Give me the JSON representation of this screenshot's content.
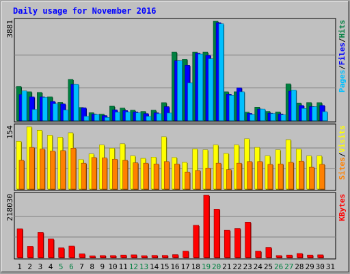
{
  "chart_data": {
    "type": "bar",
    "title": "Daily usage for November 2016",
    "days": [
      "1",
      "2",
      "3",
      "4",
      "5",
      "6",
      "7",
      "8",
      "9",
      "10",
      "11",
      "12",
      "13",
      "14",
      "15",
      "16",
      "17",
      "18",
      "19",
      "20",
      "21",
      "22",
      "23",
      "24",
      "25",
      "26",
      "27",
      "28",
      "29",
      "30",
      "31"
    ],
    "weekend_days": [
      "5",
      "6",
      "12",
      "13",
      "19",
      "20",
      "26",
      "27"
    ],
    "panels": [
      {
        "id": "hits",
        "ymax_label": "3881",
        "ymax": 3881,
        "legend": [
          "Pages",
          "/",
          "Files",
          "/",
          "Hits"
        ],
        "series": [
          {
            "name": "Hits",
            "values": [
              1331,
              1126,
              1101,
              929,
              710,
              1609,
              512,
              307,
              251,
              563,
              487,
              404,
              358,
              404,
              700,
              2675,
              2399,
              2675,
              2675,
              3881,
              1126,
              1126,
              329,
              527,
              358,
              337,
              1433,
              688,
              703,
              700,
              0
            ]
          },
          {
            "name": "Files",
            "values": [
              1019,
              926,
              926,
              748,
              649,
              1413,
              498,
              252,
              198,
              418,
              392,
              337,
              275,
              304,
              546,
              2339,
              2159,
              2634,
              2552,
              3826,
              1035,
              1280,
              282,
              451,
              290,
              256,
              1150,
              590,
              548,
              590,
              0
            ]
          },
          {
            "name": "Pages",
            "values": [
              1159,
              434,
              904,
              655,
              411,
              1413,
              167,
              236,
              123,
              327,
              334,
              305,
              167,
              270,
              296,
              2339,
              1474,
              2596,
              2419,
              3783,
              984,
              1126,
              236,
              451,
              276,
              224,
              1193,
              473,
              546,
              348,
              0
            ]
          }
        ]
      },
      {
        "id": "visits",
        "ymax_label": "154",
        "ymax": 154,
        "legend": [
          "Sites",
          "/",
          "Visits"
        ],
        "series": [
          {
            "name": "Visits",
            "values": [
              118,
              154,
              145,
              133,
              128,
              139,
              73,
              87,
              109,
              101,
              112,
              82,
              76,
              79,
              129,
              78,
              66,
              99,
              97,
              109,
              88,
              109,
              124,
              103,
              82,
              97,
              122,
              99,
              82,
              82,
              0
            ]
          },
          {
            "name": "Sites",
            "values": [
              71,
              103,
              99,
              94,
              95,
              101,
              64,
              78,
              77,
              74,
              71,
              65,
              64,
              62,
              68,
              62,
              42,
              46,
              52,
              64,
              48,
              64,
              68,
              68,
              61,
              62,
              66,
              69,
              54,
              61,
              0
            ]
          }
        ]
      },
      {
        "id": "kbytes",
        "ymax_label": "218030",
        "ymax": 218030,
        "legend": [
          "KBytes"
        ],
        "series": [
          {
            "name": "KBytes",
            "values": [
              100760,
              39650,
              87780,
              65070,
              34080,
              40560,
              12990,
              5840,
              7140,
              7140,
              9090,
              9740,
              6490,
              7790,
              7790,
              10390,
              22730,
              112800,
              218030,
              169320,
              95570,
              101710,
              123810,
              22730,
              35100,
              7140,
              9090,
              14280,
              9090,
              9740,
              0
            ]
          }
        ]
      }
    ],
    "colors": {
      "Hits": "#008040",
      "Files": "#0000ff",
      "Pages": "#00c0ff",
      "Visits": "#ffff00",
      "Sites": "#ff8000",
      "KBytes": "#ff0000",
      "title": "#0000ff",
      "weekend_label": "#008040",
      "weekday_label": "#000000",
      "plot_bg": "#c0c0c0"
    },
    "grid": true
  }
}
